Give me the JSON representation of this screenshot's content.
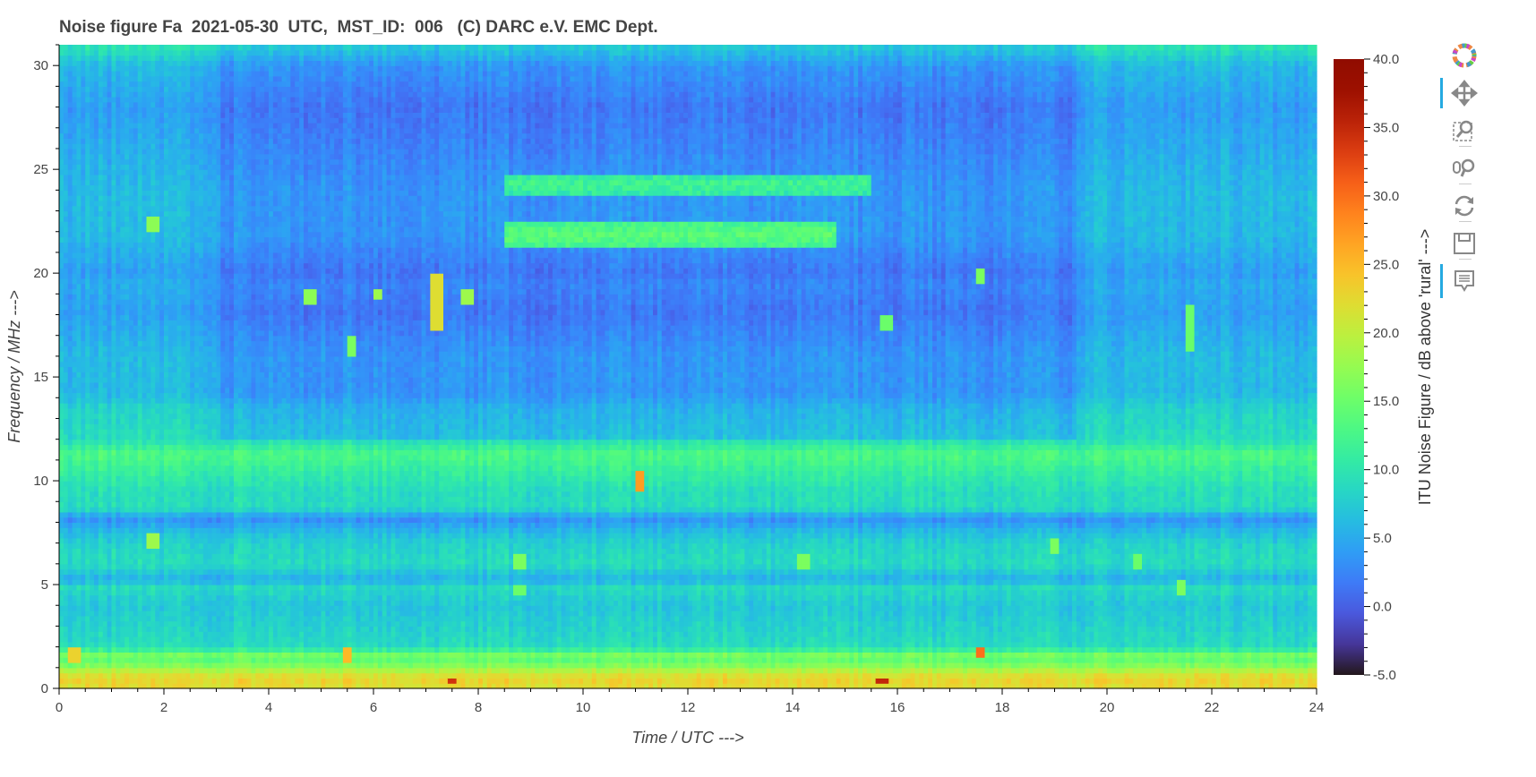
{
  "title": "Noise figure Fa  2021-05-30  UTC,  MST_ID:  006   (C) DARC e.V. EMC Dept.",
  "chart_data": {
    "type": "heatmap",
    "title": "Noise figure Fa  2021-05-30  UTC,  MST_ID:  006   (C) DARC e.V. EMC Dept.",
    "xlabel": "Time / UTC --->",
    "ylabel": "Frequency / MHz --->",
    "colorbar_label": "ITU Noise Figure / dB above 'rural' --->",
    "xlim": [
      0,
      24
    ],
    "ylim": [
      0,
      31
    ],
    "clim": [
      -5,
      40
    ],
    "colormap": "turbo",
    "x_ticks": [
      0,
      2,
      4,
      6,
      8,
      10,
      12,
      14,
      16,
      18,
      20,
      22,
      24
    ],
    "y_ticks": [
      0,
      5,
      10,
      15,
      20,
      25,
      30
    ],
    "colorbar_ticks": [
      "40.0",
      "35.0",
      "30.0",
      "25.0",
      "20.0",
      "15.0",
      "10.0",
      "5.0",
      "0.0",
      "-5.0"
    ],
    "background_day_block": {
      "x_start": 3.1,
      "x_end": 19.4,
      "f_min": 12,
      "day_offset_db": -2.5
    },
    "freq_profile": [
      {
        "f": 0.0,
        "db": 22
      },
      {
        "f": 0.5,
        "db": 23
      },
      {
        "f": 1.0,
        "db": 18
      },
      {
        "f": 1.3,
        "db": 14
      },
      {
        "f": 1.6,
        "db": 16
      },
      {
        "f": 2.0,
        "db": 9
      },
      {
        "f": 3.0,
        "db": 8
      },
      {
        "f": 4.0,
        "db": 7
      },
      {
        "f": 5.0,
        "db": 9
      },
      {
        "f": 5.2,
        "db": 5
      },
      {
        "f": 6.0,
        "db": 9
      },
      {
        "f": 7.0,
        "db": 8
      },
      {
        "f": 7.6,
        "db": 6
      },
      {
        "f": 8.2,
        "db": 3
      },
      {
        "f": 8.7,
        "db": 9
      },
      {
        "f": 9.5,
        "db": 9
      },
      {
        "f": 10.5,
        "db": 11
      },
      {
        "f": 11.3,
        "db": 13
      },
      {
        "f": 12.0,
        "db": 9
      },
      {
        "f": 13.5,
        "db": 8
      },
      {
        "f": 14.2,
        "db": 6
      },
      {
        "f": 16.0,
        "db": 6
      },
      {
        "f": 18.2,
        "db": 4
      },
      {
        "f": 19.5,
        "db": 5
      },
      {
        "f": 20.0,
        "db": 4
      },
      {
        "f": 21.8,
        "db": 6
      },
      {
        "f": 24.0,
        "db": 6
      },
      {
        "f": 26.0,
        "db": 5
      },
      {
        "f": 28.0,
        "db": 4
      },
      {
        "f": 30.0,
        "db": 6
      },
      {
        "f": 31.0,
        "db": 10
      }
    ],
    "day_bands": [
      {
        "f": 21.9,
        "db": 14,
        "x_start": 8.5,
        "x_end": 14.8
      },
      {
        "f": 24.3,
        "db": 12,
        "x_start": 8.5,
        "x_end": 15.5
      }
    ],
    "hotspots": [
      {
        "x": 7.2,
        "f_min": 17.2,
        "f_max": 20.0,
        "db": 22
      },
      {
        "x": 11.1,
        "f_min": 9.6,
        "f_max": 10.6,
        "db": 27
      },
      {
        "x": 17.6,
        "f_min": 1.6,
        "f_max": 2.0,
        "db": 30
      },
      {
        "x": 7.5,
        "f_min": 0.2,
        "f_max": 0.4,
        "db": 34
      },
      {
        "x": 15.7,
        "f_min": 0.2,
        "f_max": 0.4,
        "db": 35
      },
      {
        "x": 5.5,
        "f_min": 1.3,
        "f_max": 1.9,
        "db": 25
      },
      {
        "x": 0.3,
        "f_min": 1.2,
        "f_max": 2.0,
        "db": 23
      },
      {
        "x": 1.8,
        "f_min": 22.0,
        "f_max": 22.8,
        "db": 17
      },
      {
        "x": 1.8,
        "f_min": 6.8,
        "f_max": 7.5,
        "db": 18
      },
      {
        "x": 4.8,
        "f_min": 18.4,
        "f_max": 19.2,
        "db": 17
      },
      {
        "x": 7.8,
        "f_min": 18.4,
        "f_max": 19.2,
        "db": 18
      },
      {
        "x": 6.1,
        "f_min": 18.8,
        "f_max": 19.2,
        "db": 18
      },
      {
        "x": 5.6,
        "f_min": 16.1,
        "f_max": 17.0,
        "db": 16
      },
      {
        "x": 8.8,
        "f_min": 5.8,
        "f_max": 6.4,
        "db": 16
      },
      {
        "x": 8.8,
        "f_min": 4.6,
        "f_max": 5.1,
        "db": 15
      },
      {
        "x": 20.6,
        "f_min": 5.8,
        "f_max": 6.4,
        "db": 15
      },
      {
        "x": 21.4,
        "f_min": 4.4,
        "f_max": 5.2,
        "db": 16
      },
      {
        "x": 21.6,
        "f_min": 16.2,
        "f_max": 18.6,
        "db": 15
      },
      {
        "x": 17.6,
        "f_min": 19.5,
        "f_max": 20.3,
        "db": 16
      },
      {
        "x": 15.8,
        "f_min": 17.2,
        "f_max": 18.0,
        "db": 15
      },
      {
        "x": 14.2,
        "f_min": 5.7,
        "f_max": 6.4,
        "db": 16
      },
      {
        "x": 19.0,
        "f_min": 6.6,
        "f_max": 7.3,
        "db": 16
      }
    ]
  },
  "toolbar": {
    "items": [
      {
        "name": "bokeh-logo-icon",
        "active": false
      },
      {
        "name": "pan-icon",
        "active": true
      },
      {
        "name": "box-zoom-icon",
        "active": false
      },
      {
        "name": "wheel-zoom-icon",
        "active": false
      },
      {
        "name": "reset-icon",
        "active": false
      },
      {
        "name": "save-icon",
        "active": false
      },
      {
        "name": "hover-icon",
        "active": true
      }
    ],
    "accent_color": "#26aae1"
  }
}
